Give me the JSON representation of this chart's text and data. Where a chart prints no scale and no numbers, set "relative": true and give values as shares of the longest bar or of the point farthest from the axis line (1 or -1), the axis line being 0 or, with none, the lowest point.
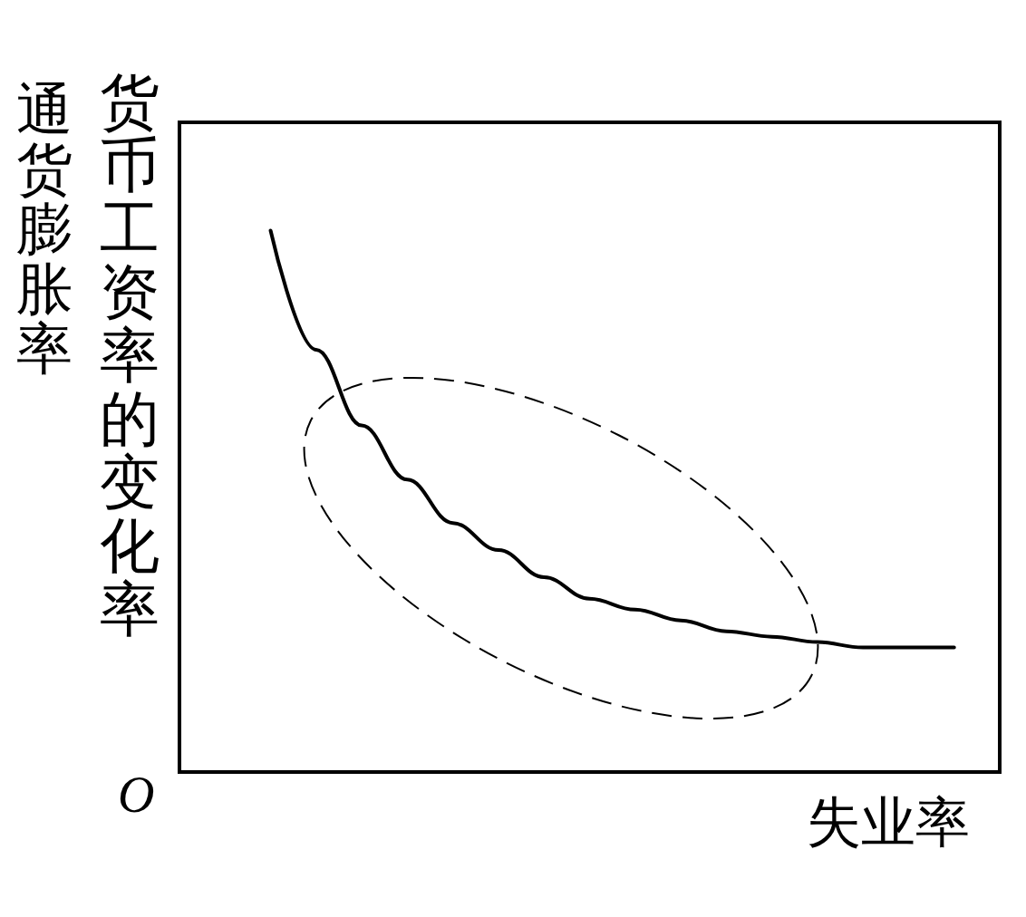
{
  "chart_data": {
    "type": "line",
    "relative": true,
    "xlabel": "失业率",
    "ylabel": "货币工资率的变化率",
    "annotations": [
      "通货膨胀率",
      "O"
    ],
    "categories": [
      null,
      null,
      null,
      null,
      null,
      null,
      null,
      null,
      null,
      null,
      null,
      null,
      null,
      null,
      null,
      null,
      null,
      null,
      null
    ],
    "series": [
      {
        "color": "#000000",
        "values": [
          null,
          null,
          1.0,
          0.78,
          0.64,
          0.54,
          0.46,
          0.41,
          0.36,
          0.32,
          0.3,
          0.28,
          0.26,
          0.25,
          0.24,
          0.23,
          0.23,
          0.23,
          null
        ]
      }
    ],
    "marker": "none",
    "grid": false
  }
}
